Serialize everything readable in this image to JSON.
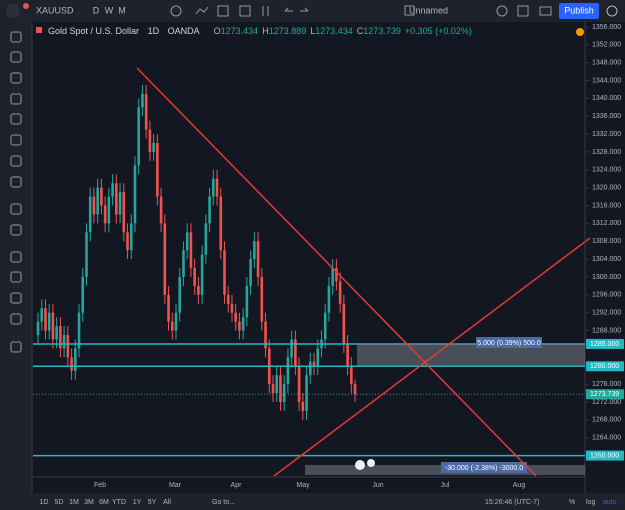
{
  "toolbar": {
    "symbol": "XAUUSD",
    "intervals": [
      "D",
      "W",
      "M"
    ],
    "layout_name": "Unnamed",
    "publish": "Publish"
  },
  "legend": {
    "name": "Gold Spot / U.S. Dollar",
    "interval": "1D",
    "source": "OANDA",
    "ohlc": [
      {
        "label": "O",
        "value": "1273.434"
      },
      {
        "label": "H",
        "value": "1273.889"
      },
      {
        "label": "L",
        "value": "1273.434"
      },
      {
        "label": "C",
        "value": "1273.739"
      }
    ],
    "change": "+0.305 (+0.02%)"
  },
  "chart": {
    "ylim": [
      1255.2,
      1357.1
    ],
    "candles": {
      "open": [
        1287,
        1290,
        1293,
        1288,
        1292,
        1286,
        1289,
        1284,
        1287,
        1282,
        1279,
        1284,
        1292,
        1300,
        1310,
        1318,
        1314,
        1320,
        1316,
        1312,
        1318,
        1321,
        1314,
        1319,
        1310,
        1306,
        1312,
        1325,
        1338,
        1341,
        1333,
        1328,
        1330,
        1318,
        1312,
        1296,
        1290,
        1288,
        1292,
        1300,
        1306,
        1310,
        1302,
        1298,
        1296,
        1305,
        1312,
        1318,
        1322,
        1318,
        1306,
        1296,
        1294,
        1292,
        1290,
        1288,
        1291,
        1298,
        1304,
        1308,
        1300,
        1290,
        1284,
        1276,
        1274,
        1278,
        1272,
        1276,
        1282,
        1286,
        1280,
        1272,
        1270,
        1278,
        1281,
        1280,
        1284,
        1286,
        1292,
        1298,
        1302,
        1299,
        1294,
        1285,
        1280,
        1276
      ],
      "high": [
        1292,
        1295,
        1295,
        1294,
        1294,
        1291,
        1291,
        1289,
        1289,
        1284,
        1286,
        1294,
        1302,
        1312,
        1320,
        1320,
        1322,
        1322,
        1318,
        1320,
        1323,
        1323,
        1321,
        1321,
        1312,
        1314,
        1327,
        1340,
        1343,
        1343,
        1335,
        1332,
        1332,
        1320,
        1314,
        1298,
        1292,
        1294,
        1302,
        1308,
        1312,
        1312,
        1304,
        1300,
        1307,
        1314,
        1320,
        1324,
        1324,
        1320,
        1308,
        1298,
        1296,
        1294,
        1292,
        1293,
        1300,
        1306,
        1310,
        1310,
        1302,
        1292,
        1286,
        1278,
        1280,
        1280,
        1278,
        1284,
        1288,
        1288,
        1282,
        1274,
        1280,
        1283,
        1283,
        1286,
        1288,
        1294,
        1300,
        1304,
        1304,
        1301,
        1296,
        1287,
        1282,
        1277
      ],
      "low": [
        1285,
        1288,
        1286,
        1286,
        1284,
        1284,
        1282,
        1282,
        1280,
        1277,
        1277,
        1282,
        1290,
        1298,
        1308,
        1312,
        1312,
        1314,
        1310,
        1310,
        1316,
        1312,
        1312,
        1308,
        1304,
        1304,
        1310,
        1323,
        1336,
        1331,
        1326,
        1326,
        1316,
        1310,
        1294,
        1288,
        1286,
        1286,
        1290,
        1298,
        1304,
        1300,
        1296,
        1294,
        1294,
        1303,
        1310,
        1316,
        1316,
        1304,
        1294,
        1292,
        1290,
        1288,
        1286,
        1286,
        1289,
        1296,
        1302,
        1298,
        1288,
        1282,
        1274,
        1272,
        1272,
        1270,
        1270,
        1274,
        1280,
        1278,
        1270,
        1268,
        1268,
        1276,
        1278,
        1278,
        1282,
        1284,
        1290,
        1296,
        1297,
        1292,
        1283,
        1278,
        1274,
        1272
      ],
      "close": [
        1290,
        1293,
        1288,
        1292,
        1286,
        1289,
        1284,
        1287,
        1282,
        1279,
        1284,
        1292,
        1300,
        1310,
        1318,
        1314,
        1320,
        1316,
        1312,
        1318,
        1321,
        1314,
        1319,
        1310,
        1306,
        1312,
        1325,
        1338,
        1341,
        1333,
        1328,
        1330,
        1318,
        1312,
        1296,
        1290,
        1288,
        1292,
        1300,
        1306,
        1310,
        1302,
        1298,
        1296,
        1305,
        1312,
        1318,
        1322,
        1318,
        1306,
        1296,
        1294,
        1292,
        1290,
        1288,
        1291,
        1298,
        1304,
        1308,
        1300,
        1290,
        1284,
        1276,
        1274,
        1278,
        1272,
        1276,
        1282,
        1286,
        1280,
        1272,
        1270,
        1278,
        1281,
        1280,
        1284,
        1286,
        1292,
        1298,
        1302,
        1299,
        1294,
        1285,
        1280,
        1276,
        1273.7
      ]
    },
    "up_color": "#26a69a",
    "down_color": "#ef5350",
    "price_ticks": [
      {
        "value": 1264,
        "label": "1264.000"
      },
      {
        "value": 1268,
        "label": "1268.000"
      },
      {
        "value": 1272,
        "label": "1272.000"
      },
      {
        "value": 1276,
        "label": "1276.000"
      },
      {
        "value": 1288,
        "label": "1288.000"
      },
      {
        "value": 1292,
        "label": "1292.000"
      },
      {
        "value": 1296,
        "label": "1296.000"
      },
      {
        "value": 1300,
        "label": "1300.000"
      },
      {
        "value": 1304,
        "label": "1304.000"
      },
      {
        "value": 1308,
        "label": "1308.000"
      },
      {
        "value": 1312,
        "label": "1312.000"
      },
      {
        "value": 1316,
        "label": "1316.000"
      },
      {
        "value": 1320,
        "label": "1320.000"
      },
      {
        "value": 1324,
        "label": "1324.000"
      },
      {
        "value": 1328,
        "label": "1328.000"
      },
      {
        "value": 1332,
        "label": "1332.000"
      },
      {
        "value": 1336,
        "label": "1336.000"
      },
      {
        "value": 1340,
        "label": "1340.000"
      },
      {
        "value": 1344,
        "label": "1344.000"
      },
      {
        "value": 1348,
        "label": "1348.000"
      },
      {
        "value": 1352,
        "label": "1352.000"
      },
      {
        "value": 1356,
        "label": "1356.000"
      }
    ],
    "price_markers": [
      {
        "value": 1285,
        "label": "1285.000",
        "color": "#22b8c4"
      },
      {
        "value": 1280,
        "label": "1280.000",
        "color": "#22b8c4"
      },
      {
        "value": 1273.739,
        "label": "1273.739",
        "color": "#26a69a"
      },
      {
        "value": 1260,
        "label": "1260.000",
        "color": "#22b8c4"
      }
    ],
    "date_labels": [
      "Feb",
      "Mar",
      "Apr",
      "May",
      "Jun",
      "Jul",
      "Aug"
    ],
    "ranges": [
      {
        "label": "5.000 (0.39%) 500.0"
      },
      {
        "label": "-30.000 (-2.38%) -3000.0"
      }
    ]
  },
  "bottom_bar": {
    "ranges": [
      "1D",
      "5D",
      "1M",
      "3M",
      "6M",
      "YTD",
      "1Y",
      "5Y",
      "All"
    ],
    "goto": "Go to...",
    "clock": "15:26:46 (UTC-7)",
    "options": [
      "%",
      "log",
      "auto"
    ]
  }
}
